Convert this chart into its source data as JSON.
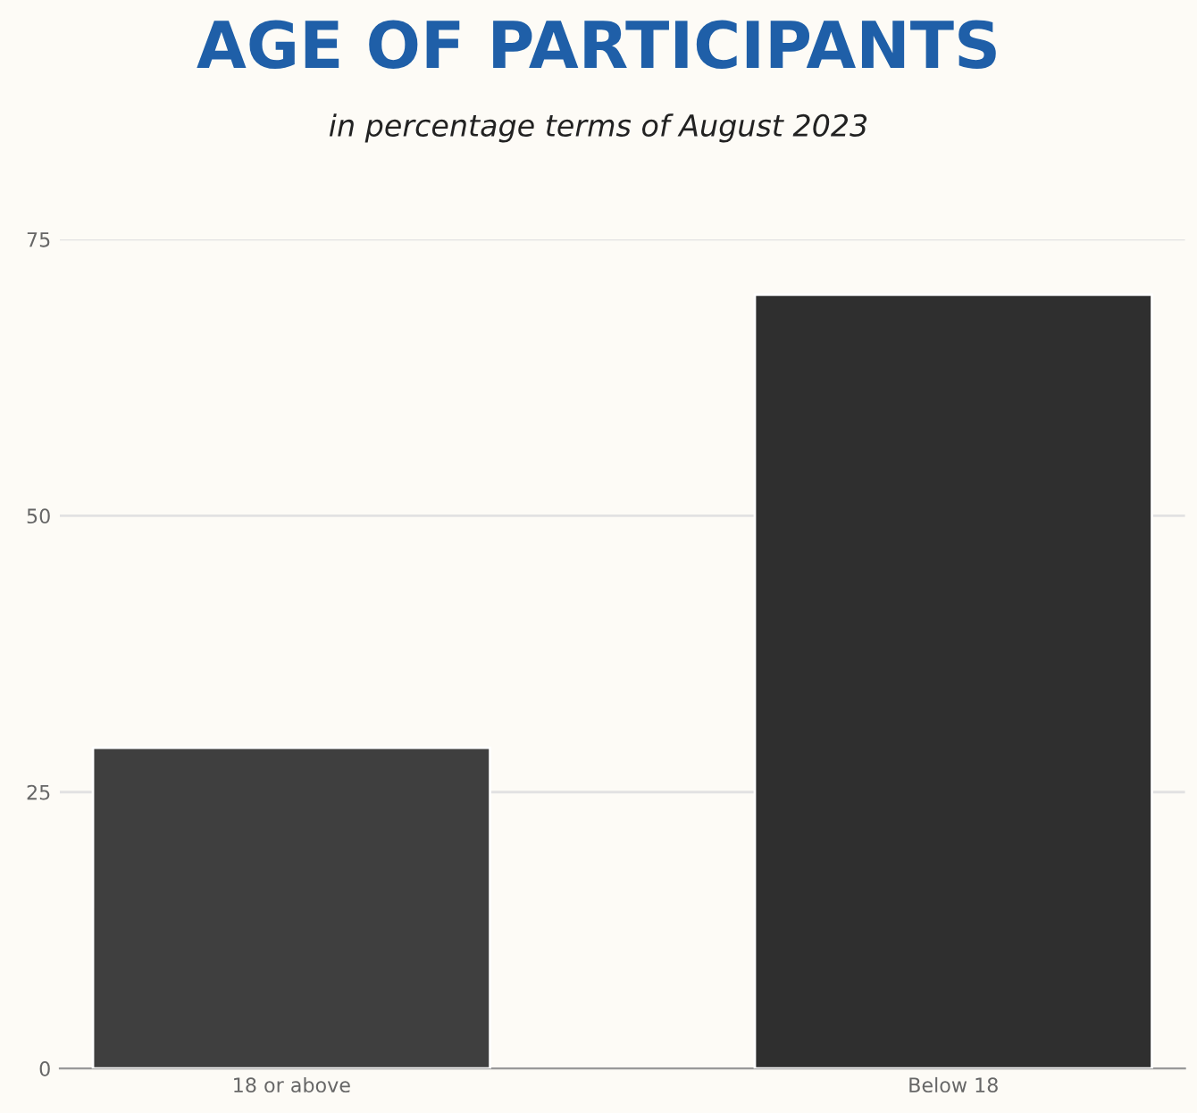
{
  "chart_data": {
    "type": "bar",
    "title": "AGE OF PARTICIPANTS",
    "subtitle": "in percentage terms of August 2023",
    "categories": [
      "18 or above",
      "Below 18"
    ],
    "values": [
      29,
      70
    ],
    "colors": [
      "#3f3f3f",
      "#2f2f2f"
    ],
    "ylim": [
      0,
      75
    ],
    "yticks": [
      0,
      25,
      50,
      75
    ],
    "grid": "y"
  }
}
